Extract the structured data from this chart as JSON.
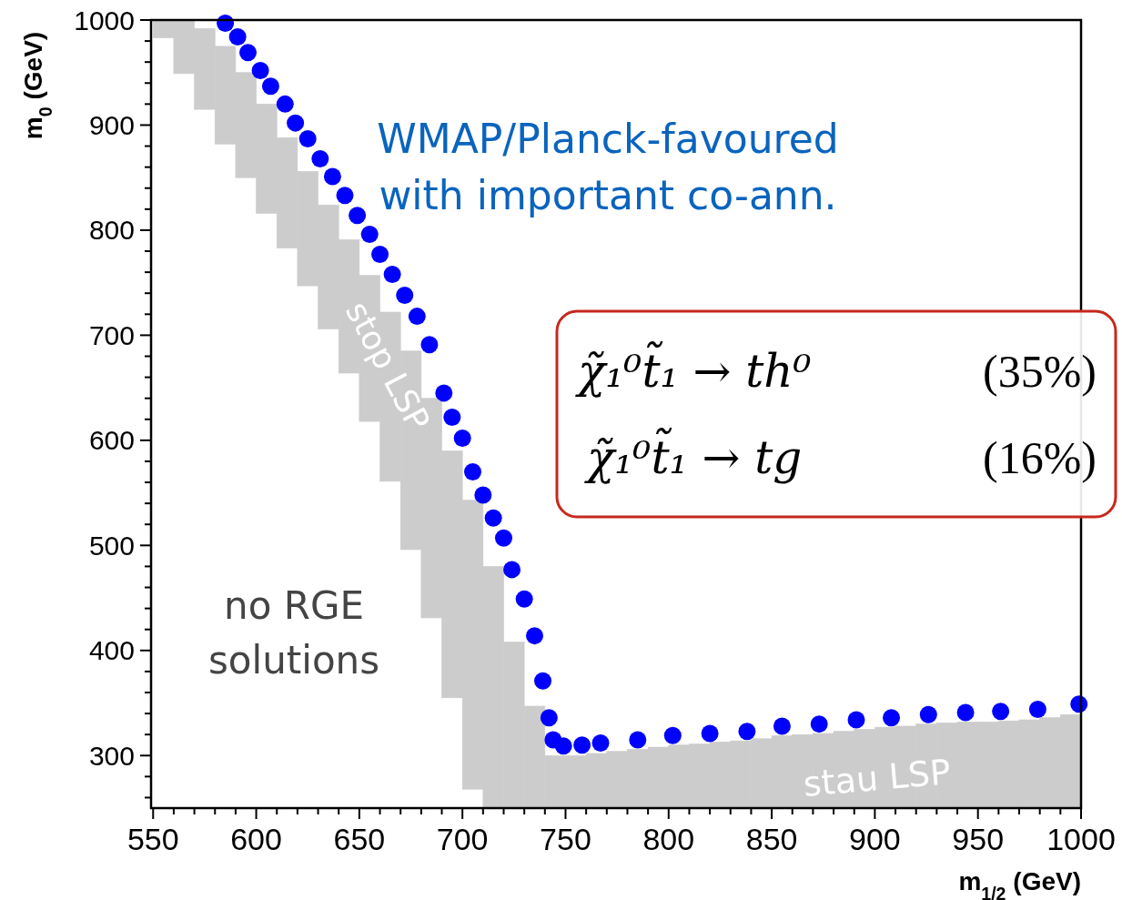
{
  "chart_data": {
    "type": "scatter",
    "xlabel": "m$_{1/2}$ (GeV)",
    "ylabel": "m$_{0}$ (GeV)",
    "xlim": [
      549,
      1000
    ],
    "ylim": [
      250,
      1000
    ],
    "xticks": [
      550,
      {
        "value": 560,
        "label": null
      },
      {
        "value": 570,
        "label": null
      },
      {
        "value": 580,
        "label": null
      },
      {
        "value": 590,
        "label": null
      },
      600,
      {
        "value": 610,
        "label": null
      },
      {
        "value": 620,
        "label": null
      },
      {
        "value": 630,
        "label": null
      },
      {
        "value": 640,
        "label": null
      },
      650,
      {
        "value": 660,
        "label": null
      },
      {
        "value": 670,
        "label": null
      },
      {
        "value": 680,
        "label": null
      },
      {
        "value": 690,
        "label": null
      },
      700,
      {
        "value": 710,
        "label": null
      },
      {
        "value": 720,
        "label": null
      },
      {
        "value": 730,
        "label": null
      },
      {
        "value": 740,
        "label": null
      },
      750,
      {
        "value": 760,
        "label": null
      },
      {
        "value": 770,
        "label": null
      },
      {
        "value": 780,
        "label": null
      },
      {
        "value": 790,
        "label": null
      },
      800,
      {
        "value": 810,
        "label": null
      },
      {
        "value": 820,
        "label": null
      },
      {
        "value": 830,
        "label": null
      },
      {
        "value": 840,
        "label": null
      },
      850,
      {
        "value": 860,
        "label": null
      },
      {
        "value": 870,
        "label": null
      },
      {
        "value": 880,
        "label": null
      },
      {
        "value": 890,
        "label": null
      },
      900,
      {
        "value": 910,
        "label": null
      },
      {
        "value": 920,
        "label": null
      },
      {
        "value": 930,
        "label": null
      },
      {
        "value": 940,
        "label": null
      },
      950,
      {
        "value": 960,
        "label": null
      },
      {
        "value": 970,
        "label": null
      },
      {
        "value": 980,
        "label": null
      },
      {
        "value": 990,
        "label": null
      },
      1000
    ],
    "yticks": [
      {
        "value": 260,
        "label": null
      },
      {
        "value": 280,
        "label": null
      },
      300,
      {
        "value": 320,
        "label": null
      },
      {
        "value": 340,
        "label": null
      },
      {
        "value": 360,
        "label": null
      },
      {
        "value": 380,
        "label": null
      },
      400,
      {
        "value": 420,
        "label": null
      },
      {
        "value": 440,
        "label": null
      },
      {
        "value": 460,
        "label": null
      },
      {
        "value": 480,
        "label": null
      },
      500,
      {
        "value": 520,
        "label": null
      },
      {
        "value": 540,
        "label": null
      },
      {
        "value": 560,
        "label": null
      },
      {
        "value": 580,
        "label": null
      },
      600,
      {
        "value": 620,
        "label": null
      },
      {
        "value": 640,
        "label": null
      },
      {
        "value": 660,
        "label": null
      },
      {
        "value": 680,
        "label": null
      },
      700,
      {
        "value": 720,
        "label": null
      },
      {
        "value": 740,
        "label": null
      },
      {
        "value": 760,
        "label": null
      },
      {
        "value": 780,
        "label": null
      },
      800,
      {
        "value": 820,
        "label": null
      },
      {
        "value": 840,
        "label": null
      },
      {
        "value": 860,
        "label": null
      },
      {
        "value": 880,
        "label": null
      },
      900,
      {
        "value": 920,
        "label": null
      },
      {
        "value": 940,
        "label": null
      },
      {
        "value": 960,
        "label": null
      },
      {
        "value": 980,
        "label": null
      },
      1000
    ],
    "series": [
      {
        "type": "bar",
        "color": "#cccccc",
        "x": [
          555,
          565,
          575,
          585,
          595,
          605,
          615,
          625,
          635,
          645,
          655,
          665,
          675,
          685,
          695,
          705,
          715,
          725,
          735,
          745,
          755,
          765,
          775,
          785,
          795,
          805,
          815,
          825,
          835,
          845,
          855,
          865,
          875,
          885,
          895,
          905,
          915,
          925,
          935,
          945,
          955,
          965,
          975,
          985,
          995
        ],
        "base": [
          983,
          949,
          915,
          882,
          850,
          816,
          783,
          747,
          706,
          664,
          618,
          561,
          496,
          431,
          355,
          268,
          250,
          250,
          250,
          250,
          250,
          250,
          250,
          250,
          250,
          250,
          250,
          250,
          250,
          250,
          250,
          250,
          250,
          250,
          250,
          250,
          250,
          250,
          250,
          250,
          250,
          250,
          250,
          250,
          250
        ],
        "values": [
          17,
          51,
          77,
          93,
          100,
          104,
          105,
          109,
          118,
          127,
          139,
          161,
          189,
          209,
          235,
          275,
          230,
          158,
          97,
          50,
          50,
          52,
          54,
          56,
          58,
          60,
          61,
          63,
          64,
          66,
          69,
          70,
          71,
          73,
          75,
          77,
          78,
          80,
          81,
          82,
          82,
          83,
          84,
          86,
          89
        ]
      },
      {
        "marker": "circle",
        "color": "#0000ff",
        "x": [
          585,
          591,
          596,
          602,
          607,
          614,
          619,
          625,
          631,
          637,
          643,
          649,
          655,
          660,
          666,
          672,
          678,
          684,
          691,
          695,
          700,
          705,
          710,
          715,
          720,
          724,
          730,
          735,
          739,
          742,
          744,
          749,
          758,
          767,
          785,
          802,
          820,
          838,
          855,
          873,
          891,
          908,
          926,
          944,
          961,
          979,
          999
        ],
        "values": [
          997,
          984,
          969,
          952,
          937,
          920,
          902,
          887,
          868,
          851,
          833,
          814,
          796,
          777,
          758,
          738,
          718,
          691,
          645,
          622,
          602,
          570,
          548,
          526,
          507,
          477,
          449,
          414,
          371,
          336,
          315,
          309,
          310,
          312,
          315,
          319,
          321,
          323,
          328,
          330,
          334,
          336,
          339,
          341,
          342,
          344,
          349
        ]
      }
    ],
    "annotations": [
      "WMAP/Planck-favoured\nwith important co-ann.",
      "stop LSP",
      "stau LSP",
      "no RGE\nsolutions",
      "χ̃₁⁰t̃₁ → th⁰",
      "(35%)",
      "χ̃₁⁰t̃₁ → tg",
      "(16%)"
    ]
  }
}
